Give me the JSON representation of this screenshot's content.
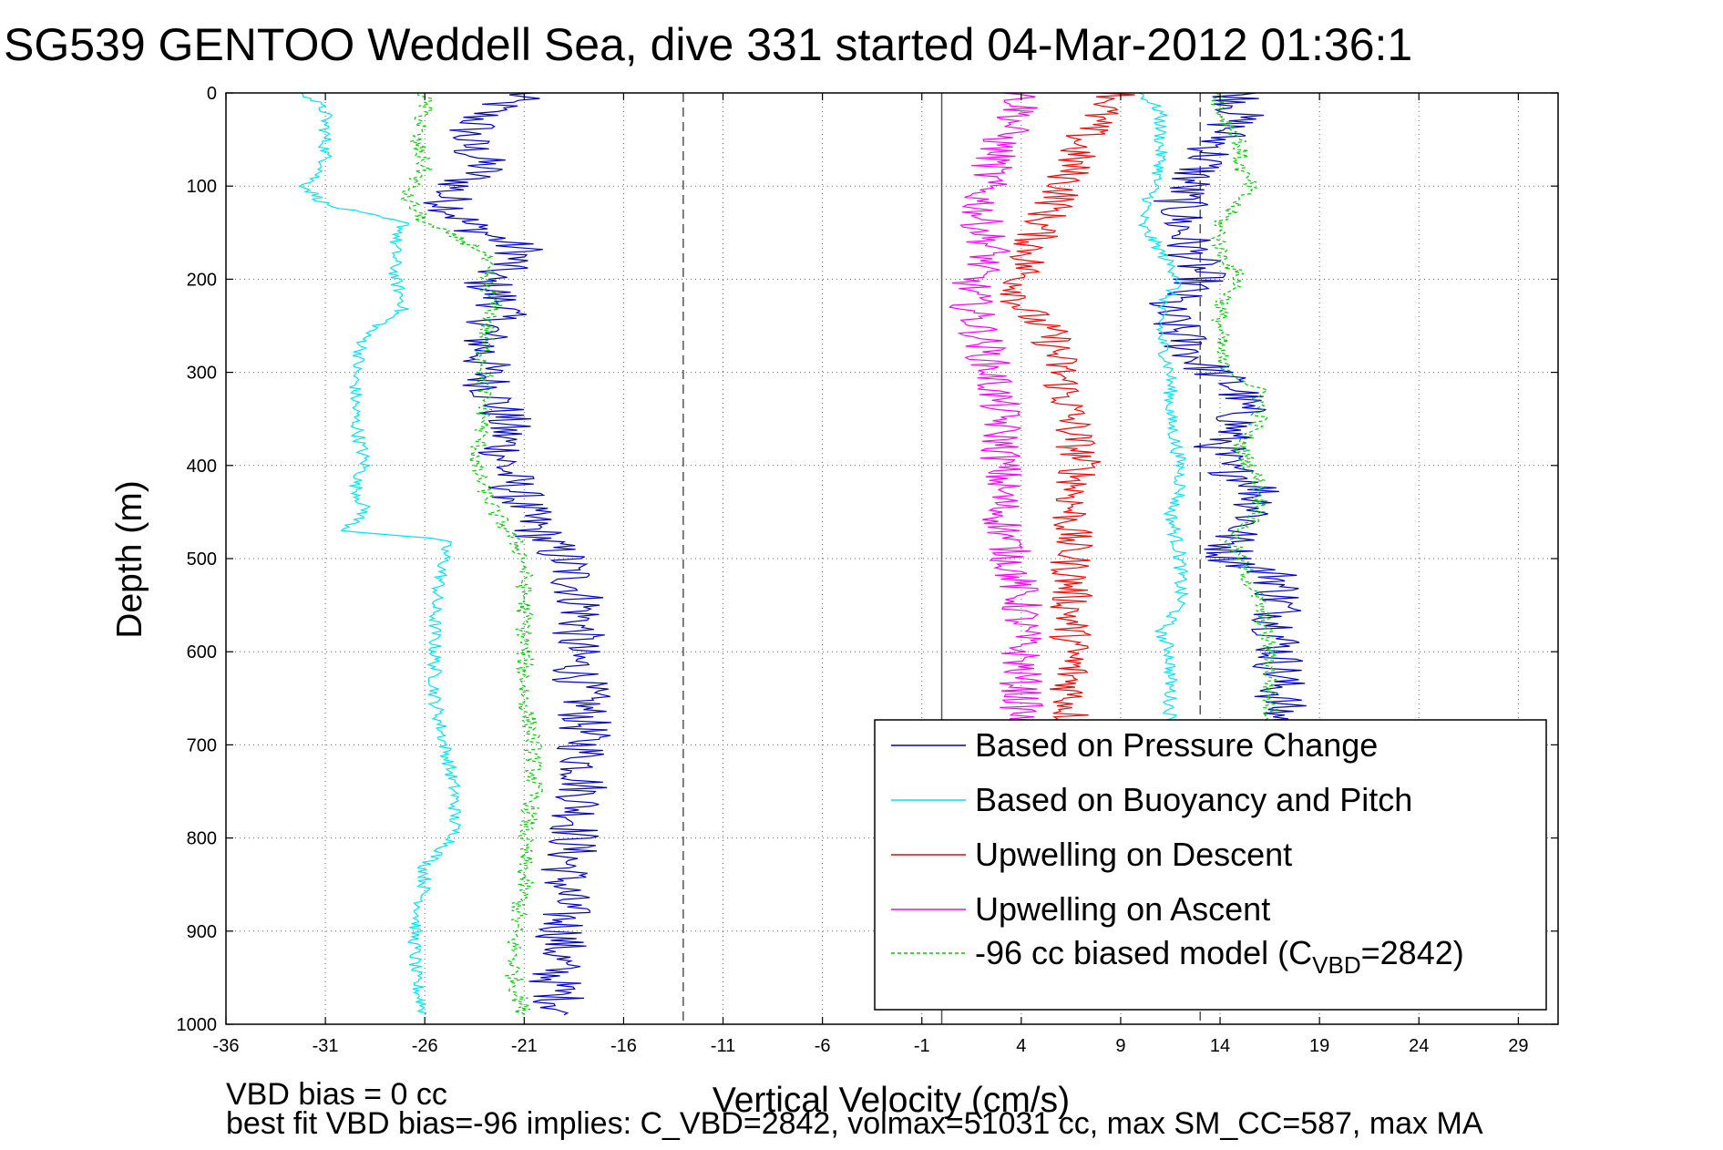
{
  "chart_data": {
    "type": "line",
    "title": "SG539 GENTOO Weddell Sea, dive 331 started 04-Mar-2012 01:36:1",
    "xlabel": "Vertical Velocity (cm/s)",
    "ylabel": "Depth (m)",
    "xlim": [
      -36,
      31
    ],
    "ylim": [
      0,
      1000
    ],
    "y_reversed": true,
    "xticks": [
      -36,
      -31,
      -26,
      -21,
      -16,
      -11,
      -6,
      -1,
      4,
      9,
      14,
      19,
      24,
      29
    ],
    "yticks": [
      0,
      100,
      200,
      300,
      400,
      500,
      600,
      700,
      800,
      900,
      1000
    ],
    "grid": true,
    "legend_placement": "bottom-right",
    "reference_lines": [
      {
        "x": 0,
        "style": "solid"
      },
      {
        "x": -13,
        "style": "dashed"
      },
      {
        "x": 13,
        "style": "dashed"
      }
    ],
    "series": [
      {
        "name": "Based on Pressure Change",
        "color": "#0000cc",
        "style": "solid",
        "segments": [
          {
            "depth": [
              0,
              20,
              50,
              80,
              110,
              140,
              170,
              200,
              230,
              260,
              300,
              350,
              400,
              450,
              480,
              500,
              550,
              600,
              650,
              700,
              750,
              800,
              850,
              900,
              950,
              990
            ],
            "velocity": [
              -21,
              -23,
              -24,
              -23,
              -25,
              -24,
              -21,
              -23,
              -22,
              -23,
              -23,
              -22,
              -22,
              -21,
              -20,
              -19,
              -18,
              -18.5,
              -18,
              -18,
              -18,
              -18.5,
              -19,
              -19,
              -19.5,
              -19
            ]
          },
          {
            "depth": [
              0,
              20,
              50,
              80,
              110,
              140,
              170,
              200,
              230,
              260,
              290,
              320,
              350,
              380,
              400,
              420,
              450,
              480,
              500,
              520,
              550,
              600,
              650,
              680
            ],
            "velocity": [
              15,
              15,
              14,
              13,
              12,
              12,
              12.5,
              13,
              11,
              12,
              13,
              15,
              15,
              14,
              14,
              16,
              16,
              14.5,
              14.5,
              17,
              17,
              17,
              17,
              17
            ]
          }
        ]
      },
      {
        "name": "Based on Buoyancy and Pitch",
        "color": "#00e5ee",
        "style": "solid",
        "segments": [
          {
            "depth": [
              0,
              20,
              50,
              80,
              100,
              120,
              140,
              160,
              200,
              230,
              260,
              300,
              350,
              400,
              420,
              450,
              470,
              480,
              500,
              550,
              600,
              650,
              700,
              750,
              800,
              830,
              850,
              900,
              950,
              990
            ],
            "velocity": [
              -32,
              -31,
              -31,
              -31,
              -32,
              -31,
              -27,
              -27.5,
              -27.5,
              -27,
              -29,
              -29.5,
              -29.5,
              -29,
              -29.5,
              -29,
              -30,
              -25,
              -25,
              -25.5,
              -25.5,
              -25.5,
              -25,
              -24.5,
              -24.5,
              -26,
              -26,
              -26.5,
              -26.5,
              -26
            ]
          },
          {
            "depth": [
              0,
              20,
              50,
              80,
              110,
              140,
              170,
              200,
              230,
              260,
              300,
              350,
              400,
              430,
              450,
              500,
              550,
              580,
              600,
              650,
              680
            ],
            "velocity": [
              10,
              11,
              11,
              11,
              10.5,
              10,
              11,
              12,
              11,
              11,
              11.5,
              11.5,
              12,
              12,
              11.5,
              12,
              12,
              11,
              11.5,
              11.5,
              11.5
            ]
          }
        ]
      },
      {
        "name": "Upwelling on Descent",
        "color": "#ff0000",
        "style": "solid",
        "segments": [
          {
            "depth": [
              0,
              20,
              50,
              80,
              110,
              140,
              170,
              200,
              230,
              260,
              300,
              350,
              400,
              450,
              500,
              550,
              600,
              650,
              680
            ],
            "velocity": [
              9,
              8,
              7,
              6.5,
              6,
              5,
              4.5,
              4,
              4,
              5.5,
              6,
              6.5,
              7,
              6.5,
              6.5,
              6.5,
              6.5,
              6.5,
              6.5
            ]
          }
        ]
      },
      {
        "name": "Upwelling on Ascent",
        "color": "#ff00ff",
        "style": "solid",
        "segments": [
          {
            "depth": [
              0,
              20,
              50,
              80,
              110,
              140,
              170,
              200,
              230,
              260,
              300,
              350,
              400,
              450,
              500,
              550,
              600,
              650,
              680
            ],
            "velocity": [
              4,
              4,
              3,
              2.5,
              2,
              2,
              2.5,
              1.5,
              1.5,
              2,
              2.5,
              3,
              3,
              3,
              3.5,
              4,
              4,
              4,
              4
            ]
          }
        ]
      },
      {
        "name": "-96 cc biased model (C",
        "name_subscript": "VBD",
        "name_suffix": "=2842)",
        "color": "#00cc00",
        "style": "dashed",
        "segments": [
          {
            "depth": [
              0,
              20,
              50,
              80,
              110,
              140,
              170,
              200,
              230,
              260,
              300,
              350,
              400,
              450,
              480,
              500,
              550,
              600,
              650,
              700,
              750,
              800,
              850,
              900,
              950,
              990
            ],
            "velocity": [
              -26,
              -26,
              -26.5,
              -26,
              -27,
              -26,
              -23,
              -23,
              -22.5,
              -23,
              -23,
              -23,
              -23.5,
              -22.5,
              -21.5,
              -21,
              -21,
              -21,
              -21,
              -20.5,
              -20.5,
              -21,
              -21,
              -21.5,
              -21.5,
              -21
            ]
          },
          {
            "depth": [
              0,
              20,
              50,
              80,
              100,
              140,
              170,
              200,
              230,
              260,
              290,
              320,
              350,
              380,
              420,
              450,
              480,
              500,
              550,
              600,
              650,
              680
            ],
            "velocity": [
              14,
              14,
              15,
              15,
              15.5,
              14,
              14,
              15,
              14,
              14,
              14,
              16,
              16,
              15,
              16,
              16,
              14.5,
              15,
              16,
              16.5,
              16.5,
              16.5
            ]
          }
        ]
      }
    ],
    "annotations": [
      "VBD bias = 0 cc",
      "best fit VBD bias=-96 implies: C_VBD=2842, volmax=51031 cc, max SM_CC=587, max MA"
    ]
  }
}
